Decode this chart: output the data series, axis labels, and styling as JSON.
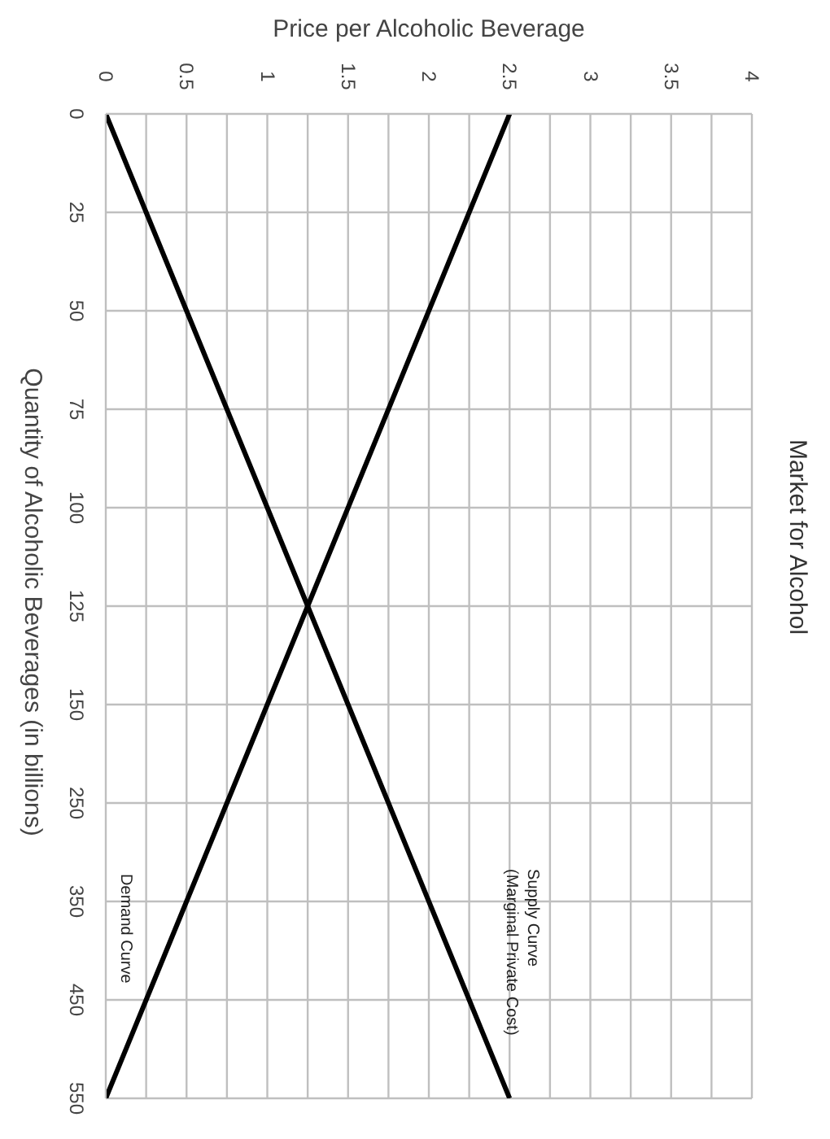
{
  "chart_data": {
    "type": "line",
    "orientation": "horizontal",
    "title": "Market for Alcohol",
    "xlabel": "Price per Alcoholic Beverage",
    "ylabel": "Quantity of Alcoholic Beverages (in billions)",
    "categories": [
      "0",
      "25",
      "50",
      "75",
      "100",
      "125",
      "150",
      "250",
      "350",
      "450",
      "550"
    ],
    "series": [
      {
        "name": "Supply Curve (Marginal Private Cost)",
        "color": "#000000",
        "values": [
          0,
          0.25,
          0.5,
          0.75,
          1,
          1.25,
          1.5,
          1.75,
          2,
          2.25,
          2.5
        ]
      },
      {
        "name": "Demand Curve",
        "color": "#000000",
        "values": [
          2.5,
          2.25,
          2,
          1.75,
          1.5,
          1.25,
          1,
          0.75,
          0.5,
          0.25,
          0
        ]
      }
    ],
    "xlim": [
      0,
      4
    ],
    "xticks": [
      0,
      {
        "value": 0.25,
        "label": null
      },
      0.5,
      {
        "value": 0.75,
        "label": null
      },
      1,
      {
        "value": 1.25,
        "label": null
      },
      1.5,
      {
        "value": 1.75,
        "label": null
      },
      2,
      {
        "value": 2.25,
        "label": null
      },
      2.5,
      {
        "value": 2.75,
        "label": null
      },
      3,
      {
        "value": 3.25,
        "label": null
      },
      3.5,
      {
        "value": 3.75,
        "label": null
      },
      4
    ],
    "grid": true,
    "legend": false,
    "marker": "none",
    "line_style": "solid"
  }
}
